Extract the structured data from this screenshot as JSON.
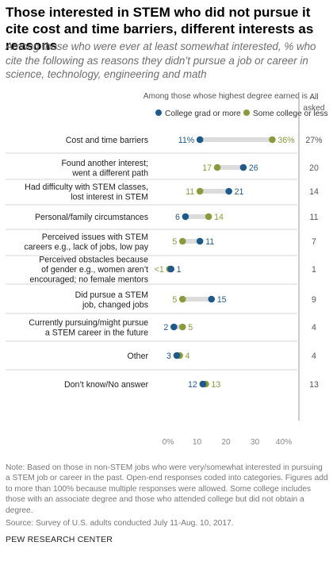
{
  "title": "Those interested in STEM who did not pursue it cite cost and time barriers, different interests as reasons",
  "subtitle": "Among those who were ever at least somewhat interested, % who cite the following as reasons they didn’t pursue a job or career in science, technology, engineering and math",
  "notes": {
    "note": "Note: Based on those in non-STEM jobs who were very/somewhat interested in pursuing a STEM job or career in the past. Open-end responses coded into categories. Figures add to more than 100% because multiple responses were allowed. Some college includes those with an associate degree and those who attended college but did not obtain a degree.",
    "source": "Source: Survey of U.S. adults conducted July 11-Aug. 10, 2017.",
    "org": "PEW RESEARCH CENTER"
  },
  "colors": {
    "college": "#1f5a8c",
    "some_college": "#8a9a3c",
    "bar": "#dcdcdc",
    "divider": "#c8c8c8"
  },
  "chart_data": {
    "type": "dot",
    "group_header": "Among those whose highest degree earned is ...",
    "all_header": "All asked",
    "x_ticks": [
      "0%",
      "10",
      "20",
      "30",
      "40%"
    ],
    "xlim": [
      0,
      40
    ],
    "series": [
      {
        "name": "College grad or more",
        "color": "#1f5a8c",
        "values": [
          11,
          26,
          21,
          6,
          11,
          1,
          15,
          2,
          3,
          12
        ],
        "labels": [
          "11%",
          "26",
          "21",
          "6",
          "11",
          "1",
          "15",
          "2",
          "3",
          "12"
        ]
      },
      {
        "name": "Some college or less",
        "color": "#8a9a3c",
        "values": [
          36,
          17,
          11,
          14,
          5,
          0.5,
          5,
          5,
          4,
          13
        ],
        "labels": [
          "36%",
          "17",
          "11",
          "14",
          "5",
          "<1",
          "5",
          "5",
          "4",
          "13"
        ]
      }
    ],
    "categories": [
      "Cost and time barriers",
      "Found another interest; went a different path",
      "Had difficulty with STEM classes, lost interest in STEM",
      "Personal/family circumstances",
      "Perceived issues with STEM careers e.g., lack of jobs, low pay",
      "Perceived obstacles because of gender e.g., women aren’t encouraged; no female mentors",
      "Did pursue a STEM job, changed jobs",
      "Currently pursuing/might pursue a STEM career in the future",
      "Other",
      "Don’t know/No answer"
    ],
    "category_lines": [
      [
        "Cost and time barriers"
      ],
      [
        "Found another interest;",
        "went a different path"
      ],
      [
        "Had difficulty with STEM classes,",
        "lost interest in STEM"
      ],
      [
        "Personal/family circumstances"
      ],
      [
        "Perceived issues with STEM",
        "careers e.g., lack of jobs, low pay"
      ],
      [
        "Perceived obstacles because",
        "of gender e.g., women aren’t",
        "encouraged; no female mentors"
      ],
      [
        "Did pursue a STEM",
        "job, changed jobs"
      ],
      [
        "Currently pursuing/might pursue",
        "a STEM career in the future"
      ],
      [
        "Other"
      ],
      [
        "Don’t know/No answer"
      ]
    ],
    "all_asked": [
      "27%",
      "20",
      "14",
      "11",
      "7",
      "1",
      "9",
      "4",
      "4",
      "13"
    ]
  }
}
